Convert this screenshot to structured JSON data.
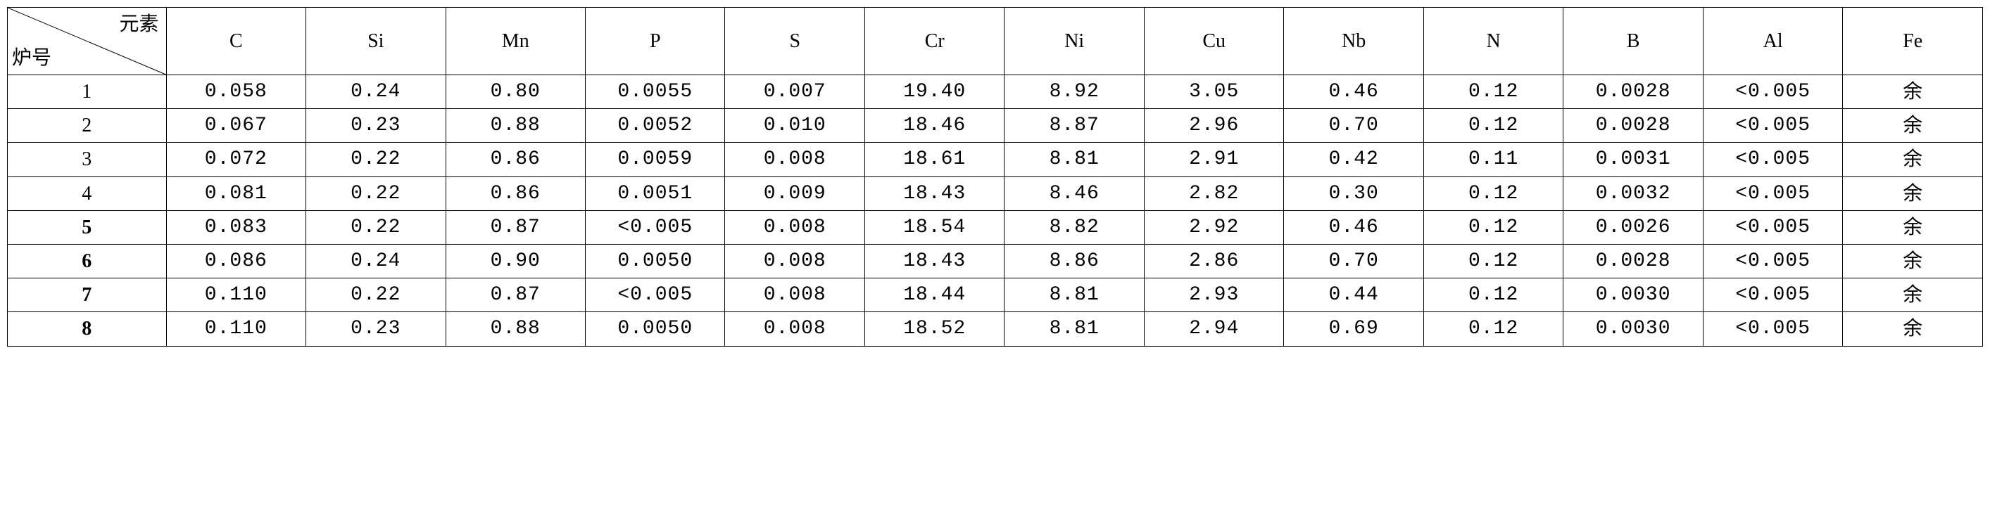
{
  "table": {
    "corner_top": "元素",
    "corner_bottom": "炉号",
    "columns": [
      "C",
      "Si",
      "Mn",
      "P",
      "S",
      "Cr",
      "Ni",
      "Cu",
      "Nb",
      "N",
      "B",
      "Al",
      "Fe"
    ],
    "bold_row_labels": [
      false,
      false,
      false,
      false,
      true,
      true,
      true,
      true
    ],
    "rows": [
      {
        "id": "1",
        "cells": [
          "0.058",
          "0.24",
          "0.80",
          "0.0055",
          "0.007",
          "19.40",
          "8.92",
          "3.05",
          "0.46",
          "0.12",
          "0.0028",
          "<0.005",
          "余"
        ]
      },
      {
        "id": "2",
        "cells": [
          "0.067",
          "0.23",
          "0.88",
          "0.0052",
          "0.010",
          "18.46",
          "8.87",
          "2.96",
          "0.70",
          "0.12",
          "0.0028",
          "<0.005",
          "余"
        ]
      },
      {
        "id": "3",
        "cells": [
          "0.072",
          "0.22",
          "0.86",
          "0.0059",
          "0.008",
          "18.61",
          "8.81",
          "2.91",
          "0.42",
          "0.11",
          "0.0031",
          "<0.005",
          "余"
        ]
      },
      {
        "id": "4",
        "cells": [
          "0.081",
          "0.22",
          "0.86",
          "0.0051",
          "0.009",
          "18.43",
          "8.46",
          "2.82",
          "0.30",
          "0.12",
          "0.0032",
          "<0.005",
          "余"
        ]
      },
      {
        "id": "5",
        "cells": [
          "0.083",
          "0.22",
          "0.87",
          "<0.005",
          "0.008",
          "18.54",
          "8.82",
          "2.92",
          "0.46",
          "0.12",
          "0.0026",
          "<0.005",
          "余"
        ]
      },
      {
        "id": "6",
        "cells": [
          "0.086",
          "0.24",
          "0.90",
          "0.0050",
          "0.008",
          "18.43",
          "8.86",
          "2.86",
          "0.70",
          "0.12",
          "0.0028",
          "<0.005",
          "余"
        ]
      },
      {
        "id": "7",
        "cells": [
          "0.110",
          "0.22",
          "0.87",
          "<0.005",
          "0.008",
          "18.44",
          "8.81",
          "2.93",
          "0.44",
          "0.12",
          "0.0030",
          "<0.005",
          "余"
        ]
      },
      {
        "id": "8",
        "cells": [
          "0.110",
          "0.23",
          "0.88",
          "0.0050",
          "0.008",
          "18.52",
          "8.81",
          "2.94",
          "0.69",
          "0.12",
          "0.0030",
          "<0.005",
          "余"
        ]
      }
    ],
    "border_color": "#000000",
    "background_color": "#ffffff",
    "font_size_pt": 28
  }
}
